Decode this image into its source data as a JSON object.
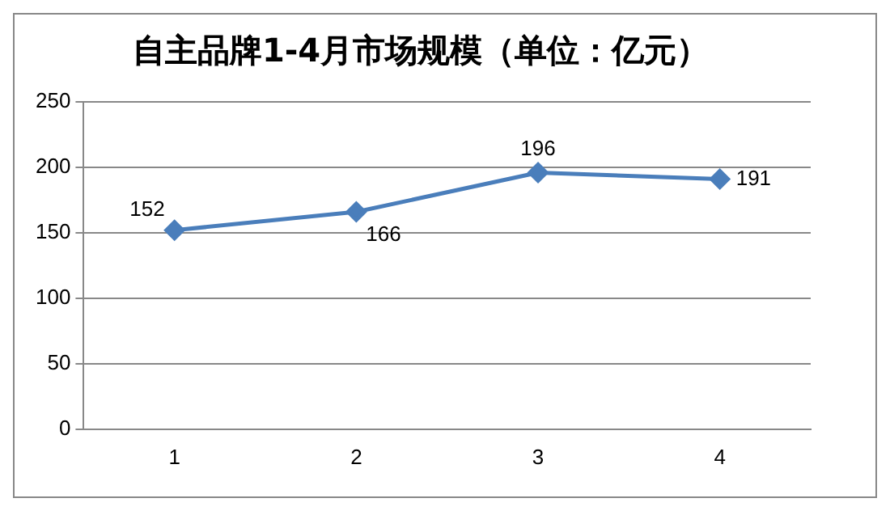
{
  "chart_data": {
    "type": "line",
    "title": "自主品牌1-4月市场规模（单位：亿元）",
    "categories": [
      "1",
      "2",
      "3",
      "4"
    ],
    "series": [
      {
        "color": "#4a7ebb",
        "values": [
          152,
          166,
          196,
          191
        ]
      }
    ],
    "ylim": [
      0,
      250
    ],
    "yticks": [
      0,
      50,
      100,
      150,
      200,
      250
    ],
    "grid": "y",
    "legend": false,
    "marker": "diamond",
    "line_style": "solid",
    "data_labels": true
  }
}
